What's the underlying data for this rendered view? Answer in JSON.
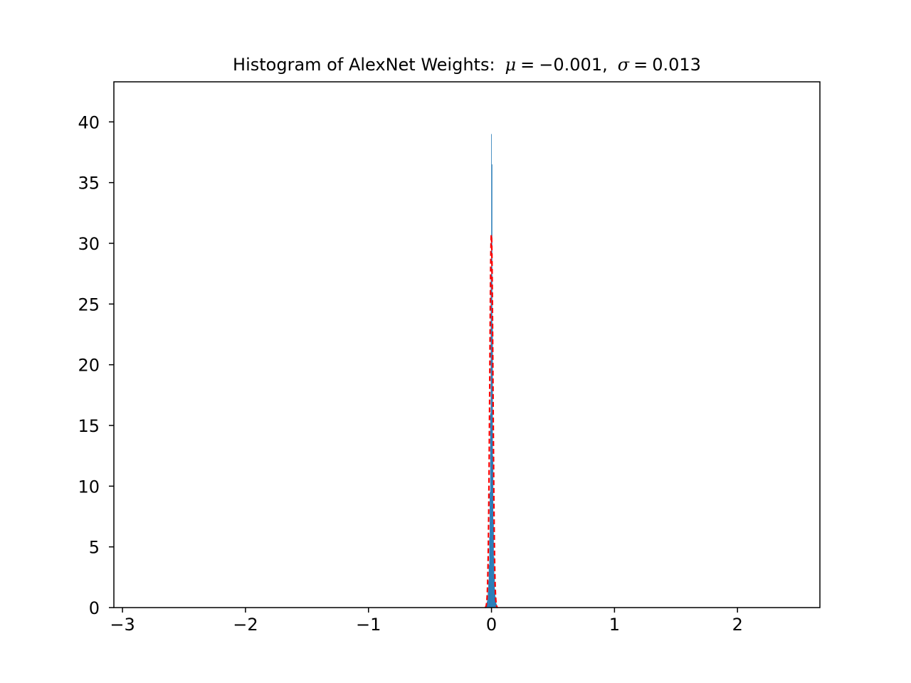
{
  "chart_data": {
    "type": "bar",
    "title": {
      "prefix": "Histogram of AlexNet Weights",
      "colon": ":",
      "mu_symbol": "μ",
      "mu_value": "−0.001",
      "sigma_symbol": "σ",
      "sigma_value": "0.013"
    },
    "xlabel": "",
    "ylabel": "",
    "xlim": [
      -3.07,
      2.67
    ],
    "ylim": [
      0,
      43.3
    ],
    "xticks": [
      {
        "value": -3,
        "label": "−3"
      },
      {
        "value": -2,
        "label": "−2"
      },
      {
        "value": -1,
        "label": "−1"
      },
      {
        "value": 0,
        "label": "0"
      },
      {
        "value": 1,
        "label": "1"
      },
      {
        "value": 2,
        "label": "2"
      }
    ],
    "yticks": [
      {
        "value": 0,
        "label": "0"
      },
      {
        "value": 5,
        "label": "5"
      },
      {
        "value": 10,
        "label": "10"
      },
      {
        "value": 15,
        "label": "15"
      },
      {
        "value": 20,
        "label": "20"
      },
      {
        "value": 25,
        "label": "25"
      },
      {
        "value": 30,
        "label": "30"
      },
      {
        "value": 35,
        "label": "35"
      },
      {
        "value": 40,
        "label": "40"
      }
    ],
    "histogram": {
      "bin_width": 0.004,
      "bins": [
        {
          "x": -0.04,
          "value": 0.3
        },
        {
          "x": -0.036,
          "value": 0.5
        },
        {
          "x": -0.032,
          "value": 0.8
        },
        {
          "x": -0.028,
          "value": 1.3
        },
        {
          "x": -0.024,
          "value": 2.2
        },
        {
          "x": -0.02,
          "value": 3.5
        },
        {
          "x": -0.016,
          "value": 5.8
        },
        {
          "x": -0.012,
          "value": 9.5
        },
        {
          "x": -0.008,
          "value": 16.0
        },
        {
          "x": -0.004,
          "value": 27.0
        },
        {
          "x": 0.0,
          "value": 39.0
        },
        {
          "x": 0.004,
          "value": 36.5
        },
        {
          "x": 0.008,
          "value": 23.0
        },
        {
          "x": 0.012,
          "value": 12.5
        },
        {
          "x": 0.016,
          "value": 7.0
        },
        {
          "x": 0.02,
          "value": 4.2
        },
        {
          "x": 0.024,
          "value": 2.5
        },
        {
          "x": 0.028,
          "value": 1.5
        },
        {
          "x": 0.032,
          "value": 0.9
        },
        {
          "x": 0.036,
          "value": 0.5
        },
        {
          "x": 0.04,
          "value": 0.3
        }
      ]
    },
    "fit_curve": {
      "type": "normal-pdf",
      "mu": -0.001,
      "sigma": 0.013,
      "style": "dashed"
    },
    "grid": false,
    "colors": {
      "bars": "#1f77b4",
      "fit_curve": "#ff0000",
      "axes": "#000000"
    }
  }
}
